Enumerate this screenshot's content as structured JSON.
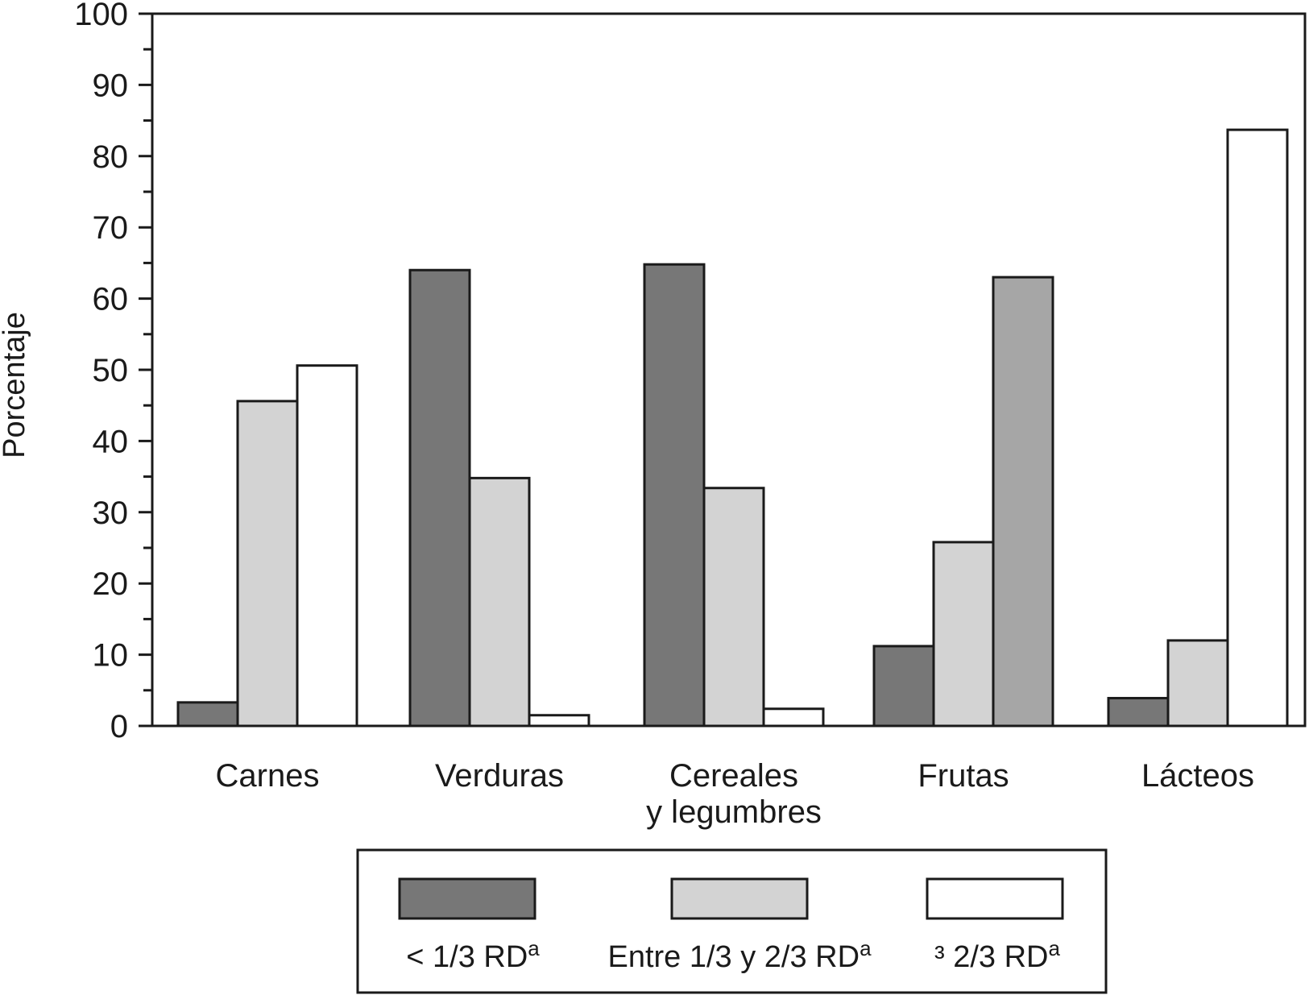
{
  "chart_data": {
    "type": "bar",
    "ylabel": "Porcentaje",
    "ylim": [
      0,
      100
    ],
    "yticks": [
      "0",
      "10",
      "20",
      "30",
      "40",
      "50",
      "60",
      "70",
      "80",
      "90",
      "100"
    ],
    "categories": [
      [
        "Carnes"
      ],
      [
        "Verduras"
      ],
      [
        "Cereales",
        "y legumbres"
      ],
      [
        "Frutas"
      ],
      [
        "Lácteos"
      ]
    ],
    "series": [
      {
        "name": "< 1/3 RD",
        "sup": "a",
        "color": "#777777",
        "values": [
          3.3,
          64,
          64.8,
          11.2,
          3.9
        ]
      },
      {
        "name": "Entre 1/3 y 2/3 RD",
        "sup": "a",
        "color": "#d3d3d3",
        "values": [
          45.6,
          34.8,
          33.4,
          25.8,
          12
        ]
      },
      {
        "name": "³ 2/3 RD",
        "sup": "a",
        "color": "#ffffff",
        "values": [
          50.6,
          1.5,
          2.4,
          63,
          83.7
        ]
      }
    ],
    "bar_colors_override": [
      [
        null,
        null,
        null,
        null,
        null
      ],
      [
        null,
        null,
        null,
        null,
        null
      ],
      [
        null,
        null,
        null,
        "#a6a6a6",
        null
      ]
    ],
    "grid": false,
    "legend_position": "bottom"
  }
}
